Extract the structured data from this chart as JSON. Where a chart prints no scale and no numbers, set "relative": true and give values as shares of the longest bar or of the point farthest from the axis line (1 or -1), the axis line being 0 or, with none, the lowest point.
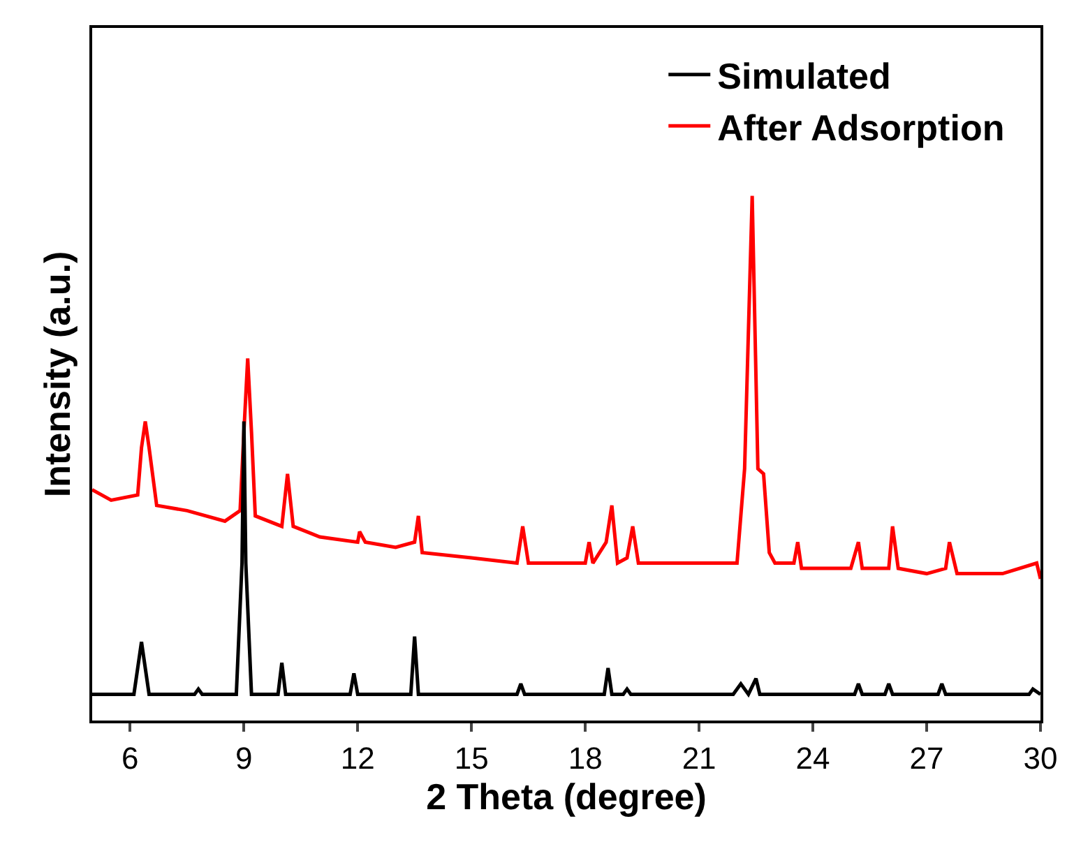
{
  "chart_data": {
    "type": "line",
    "xlabel": "2 Theta (degree)",
    "ylabel": "Intensity (a.u.)",
    "relative": true,
    "xlim": [
      5,
      30
    ],
    "xticks": [
      6,
      9,
      12,
      15,
      18,
      21,
      24,
      27,
      30
    ],
    "legend": "top right",
    "marker": "none",
    "line_style": "solid",
    "series": [
      {
        "name": "Simulated",
        "color": "#000000",
        "x": [
          5,
          6.1,
          6.3,
          6.5,
          7.7,
          7.8,
          7.9,
          8.8,
          8.95,
          9.0,
          9.05,
          9.2,
          9.9,
          10.0,
          10.1,
          11.8,
          11.9,
          12.0,
          13.4,
          13.5,
          13.6,
          16.2,
          16.3,
          16.4,
          18.5,
          18.6,
          18.7,
          19.0,
          19.1,
          19.2,
          21.9,
          22.1,
          22.3,
          22.5,
          22.6,
          25.1,
          25.2,
          25.3,
          25.9,
          26.0,
          26.1,
          27.3,
          27.4,
          27.5,
          29.7,
          29.8,
          30
        ],
        "values": [
          0.05,
          0.05,
          0.15,
          0.05,
          0.05,
          0.06,
          0.05,
          0.05,
          0.3,
          0.57,
          0.3,
          0.05,
          0.05,
          0.11,
          0.05,
          0.05,
          0.09,
          0.05,
          0.05,
          0.16,
          0.05,
          0.05,
          0.07,
          0.05,
          0.05,
          0.1,
          0.05,
          0.05,
          0.06,
          0.05,
          0.05,
          0.07,
          0.05,
          0.08,
          0.05,
          0.05,
          0.07,
          0.05,
          0.05,
          0.07,
          0.05,
          0.05,
          0.07,
          0.05,
          0.05,
          0.06,
          0.05
        ]
      },
      {
        "name": "After Adsorption",
        "color": "#ff0000",
        "x": [
          5,
          5.5,
          6.2,
          6.3,
          6.4,
          6.5,
          6.7,
          7.5,
          8.5,
          8.9,
          9.0,
          9.1,
          9.2,
          9.3,
          10.0,
          10.15,
          10.3,
          11,
          12,
          12.05,
          12.2,
          13,
          13.5,
          13.6,
          13.7,
          15,
          16.2,
          16.35,
          16.5,
          18,
          18.1,
          18.2,
          18.55,
          18.7,
          18.85,
          19.1,
          19.25,
          19.4,
          20,
          21,
          22.0,
          22.2,
          22.4,
          22.55,
          22.7,
          22.85,
          23,
          23.5,
          23.6,
          23.7,
          25,
          25.2,
          25.3,
          26,
          26.1,
          26.25,
          27,
          27.5,
          27.6,
          27.8,
          29,
          29.9,
          30
        ],
        "values": [
          0.44,
          0.42,
          0.43,
          0.52,
          0.57,
          0.52,
          0.41,
          0.4,
          0.38,
          0.4,
          0.55,
          0.69,
          0.55,
          0.39,
          0.37,
          0.47,
          0.37,
          0.35,
          0.34,
          0.36,
          0.34,
          0.33,
          0.34,
          0.39,
          0.32,
          0.31,
          0.3,
          0.37,
          0.3,
          0.3,
          0.34,
          0.3,
          0.34,
          0.41,
          0.3,
          0.31,
          0.37,
          0.3,
          0.3,
          0.3,
          0.3,
          0.48,
          1.0,
          0.48,
          0.47,
          0.32,
          0.3,
          0.3,
          0.34,
          0.29,
          0.29,
          0.34,
          0.29,
          0.29,
          0.37,
          0.29,
          0.28,
          0.29,
          0.34,
          0.28,
          0.28,
          0.3,
          0.27
        ]
      }
    ]
  }
}
